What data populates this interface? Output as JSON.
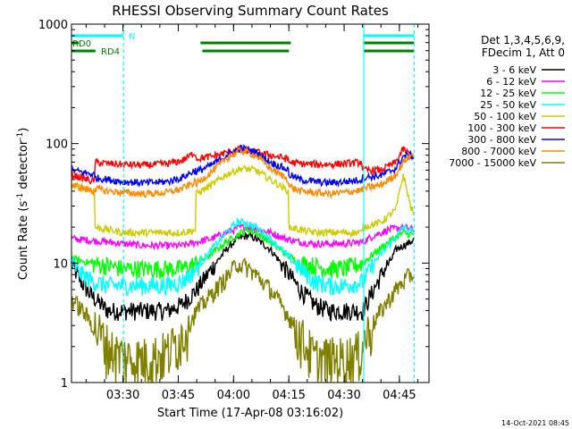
{
  "chart_data": {
    "type": "line",
    "title": "RHESSI Observing Summary Count Rates",
    "xlabel": "Start Time (17-Apr-08 03:16:02)",
    "ylabel_main": "Count Rate (s",
    "ylabel_sup1": "-1",
    "ylabel_mid": " detector",
    "ylabel_sup2": "-1",
    "ylabel_end": ")",
    "y_scale": "log",
    "ylim": [
      1,
      1000
    ],
    "xlim_minutes": [
      0,
      97
    ],
    "x_ticks": [
      {
        "label": "03:30",
        "minutes": 13.97
      },
      {
        "label": "03:45",
        "minutes": 28.97
      },
      {
        "label": "04:00",
        "minutes": 43.97
      },
      {
        "label": "04:15",
        "minutes": 58.97
      },
      {
        "label": "04:30",
        "minutes": 73.97
      },
      {
        "label": "04:45",
        "minutes": 88.97
      }
    ],
    "y_ticks": [
      {
        "label": "1",
        "value": 1
      },
      {
        "label": "10",
        "value": 10
      },
      {
        "label": "100",
        "value": 100
      },
      {
        "label": "1000",
        "value": 1000
      }
    ],
    "legend_header": [
      "Det 1,3,4,5,6,9,",
      "FDecim 1, Att 0"
    ],
    "legend_position": "right",
    "series": [
      {
        "name": "3 - 6 keV",
        "color": "#000000",
        "x": [
          0,
          2,
          5,
          8,
          10,
          12,
          14,
          16,
          20,
          24,
          26,
          30,
          34,
          38,
          42,
          45,
          48,
          50,
          54,
          58,
          62,
          66,
          70,
          74,
          78,
          79,
          82,
          85,
          87,
          88,
          92,
          93
        ],
        "y": [
          10,
          7.5,
          5.5,
          4.5,
          4,
          4,
          4,
          4,
          4,
          4,
          4,
          4.5,
          6,
          9,
          13,
          16,
          17,
          16,
          13,
          9,
          6,
          4.5,
          4,
          4,
          4,
          4,
          6,
          9,
          11,
          13,
          15,
          16
        ]
      },
      {
        "name": "6 - 12 keV",
        "color": "#ff00ff",
        "x": [
          0,
          5,
          10,
          14,
          20,
          26,
          30,
          34,
          38,
          42,
          46,
          48,
          50,
          54,
          58,
          62,
          66,
          70,
          74,
          79,
          82,
          86,
          90,
          93
        ],
        "y": [
          16,
          15.5,
          15,
          14.5,
          14,
          14,
          14,
          15,
          16,
          18,
          20,
          20,
          19.5,
          18,
          16,
          15,
          14.5,
          14.5,
          14.5,
          15,
          17,
          19,
          20,
          19
        ]
      },
      {
        "name": "12 - 25 keV",
        "color": "#00ff00",
        "x": [
          0,
          5,
          10,
          14,
          20,
          26,
          30,
          34,
          38,
          42,
          46,
          48,
          50,
          54,
          58,
          62,
          66,
          70,
          74,
          79,
          82,
          86,
          90,
          93
        ],
        "y": [
          11,
          10,
          9.5,
          9,
          9,
          9,
          9,
          10,
          12,
          15,
          18,
          19,
          18,
          15,
          12,
          10,
          9.5,
          9,
          9,
          10,
          12,
          15,
          18,
          17
        ]
      },
      {
        "name": "25 - 50 keV",
        "color": "#00ffff",
        "x": [
          0,
          3,
          6,
          10,
          14,
          20,
          26,
          30,
          34,
          38,
          42,
          45,
          47,
          50,
          54,
          58,
          62,
          66,
          70,
          74,
          79,
          82,
          86,
          90,
          93
        ],
        "y": [
          10,
          8,
          7,
          6.5,
          6.5,
          6.5,
          6.5,
          7,
          9,
          13,
          18,
          22,
          22,
          20,
          16,
          12,
          9,
          7,
          6.5,
          6.5,
          7,
          10,
          14,
          20,
          18
        ]
      },
      {
        "name": "50 - 100 keV",
        "color": "#cccc00",
        "x": [
          0,
          6.2,
          6.3,
          10,
          14,
          20,
          26,
          30,
          33.7,
          33.8,
          38,
          42,
          46,
          50,
          54,
          58.9,
          59,
          62,
          66,
          70,
          74,
          78.9,
          79,
          84,
          88,
          90,
          92,
          93
        ],
        "y": [
          45,
          40,
          20,
          19,
          18,
          18,
          18,
          18,
          19,
          38,
          45,
          55,
          62,
          60,
          50,
          40,
          20,
          19,
          18,
          18,
          18,
          18,
          20,
          22,
          28,
          55,
          30,
          25
        ]
      },
      {
        "name": "100 - 300 keV",
        "color": "#ff0000",
        "x": [
          0,
          6.2,
          6.3,
          10,
          14,
          20,
          26,
          30,
          33.7,
          33.8,
          38,
          42,
          46,
          50,
          54,
          58.9,
          59,
          62,
          66,
          70,
          74,
          78.9,
          79,
          84,
          88,
          90,
          92,
          93
        ],
        "y": [
          55,
          48,
          70,
          68,
          67,
          66,
          68,
          72,
          85,
          75,
          78,
          84,
          90,
          85,
          80,
          74,
          70,
          68,
          67,
          67,
          68,
          70,
          60,
          60,
          70,
          90,
          80,
          78
        ]
      },
      {
        "name": "300 - 800 keV",
        "color": "#0000ff",
        "x": [
          0,
          6.2,
          6.3,
          10,
          14,
          20,
          26,
          30,
          33.7,
          33.8,
          38,
          42,
          46,
          50,
          54,
          58.9,
          59,
          62,
          66,
          70,
          74,
          78.9,
          79,
          84,
          88,
          90,
          92,
          93
        ],
        "y": [
          60,
          55,
          52,
          50,
          48,
          47,
          48,
          52,
          60,
          58,
          66,
          80,
          92,
          85,
          70,
          60,
          55,
          50,
          48,
          47,
          48,
          50,
          52,
          54,
          62,
          78,
          80,
          78
        ]
      },
      {
        "name": "800 - 7000 keV",
        "color": "#ff8800",
        "x": [
          0,
          6.2,
          6.3,
          10,
          14,
          20,
          26,
          30,
          33.7,
          33.8,
          38,
          42,
          46,
          50,
          54,
          58.9,
          59,
          62,
          66,
          70,
          74,
          78.9,
          79,
          84,
          88,
          90,
          92,
          93
        ],
        "y": [
          45,
          40,
          42,
          40,
          39,
          38,
          39,
          42,
          48,
          46,
          58,
          75,
          88,
          80,
          62,
          50,
          44,
          40,
          39,
          38,
          39,
          41,
          42,
          45,
          55,
          70,
          80,
          80
        ]
      },
      {
        "name": "7000 - 15000 keV",
        "color": "#808000",
        "x": [
          0,
          3,
          6,
          8,
          10,
          12,
          16,
          20,
          26,
          30,
          34,
          38,
          42,
          45,
          48,
          50,
          54,
          58,
          62,
          64,
          66,
          70,
          74,
          78,
          80,
          84,
          88,
          90,
          92,
          93
        ],
        "y": [
          5,
          4,
          3,
          2.5,
          2,
          1.8,
          1.6,
          1.6,
          1.8,
          2.5,
          4,
          5.5,
          7.5,
          10,
          9,
          8,
          6,
          4,
          2.5,
          2,
          1.6,
          1.6,
          1.6,
          1.8,
          2.5,
          4,
          6,
          7,
          8,
          8
        ]
      }
    ],
    "flags": [
      {
        "label": "N",
        "color": "#00ffff",
        "segments": [
          [
            0,
            14.1
          ],
          [
            79.3,
            93
          ]
        ],
        "level": 1
      },
      {
        "label": "RD0",
        "color": "#008000",
        "segments": [
          [
            0,
            2
          ],
          [
            35,
            59.5
          ],
          [
            79.3,
            93
          ]
        ],
        "level": 2
      },
      {
        "label": "RD4",
        "color": "#008000",
        "segments": [
          [
            0,
            6.5
          ],
          [
            35.5,
            59
          ],
          [
            79.3,
            93
          ]
        ],
        "level": 3
      }
    ],
    "markers": [
      {
        "minutes": 14.1,
        "style": "dashed",
        "color": "#00ffff"
      },
      {
        "minutes": 79.3,
        "style": "solid",
        "color": "#00ffff"
      },
      {
        "minutes": 93,
        "style": "dashed",
        "color": "#00ffff"
      }
    ],
    "timestamp": "14-Oct-2021 08:45"
  }
}
